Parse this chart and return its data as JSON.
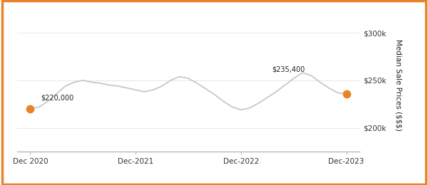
{
  "title": "",
  "ylabel": "Median Sale Prices ($$$)",
  "background_color": "#ffffff",
  "border_color": "#E8832A",
  "line_color": "#c8c8c8",
  "dot_color": "#E8832A",
  "annotation_start": "$220,000",
  "annotation_end": "$235,400",
  "ylim": [
    175000,
    315000
  ],
  "yticks": [
    200000,
    250000,
    300000
  ],
  "ytick_labels": [
    "$200k",
    "$250k",
    "$300k"
  ],
  "x_tick_labels": [
    "Dec 2020",
    "Dec-2021",
    "Dec-2022",
    "Dec-2023"
  ],
  "months": [
    0,
    1,
    2,
    3,
    4,
    5,
    6,
    7,
    8,
    9,
    10,
    11,
    12,
    13,
    14,
    15,
    16,
    17,
    18,
    19,
    20,
    21,
    22,
    23,
    24,
    25,
    26,
    27,
    28,
    29,
    30,
    31,
    32,
    33,
    34,
    35,
    36
  ],
  "values": [
    220000,
    222000,
    228000,
    236000,
    244000,
    248000,
    250000,
    248000,
    247000,
    245000,
    244000,
    242000,
    240000,
    238000,
    240000,
    244000,
    250000,
    254000,
    252000,
    247000,
    241000,
    235000,
    228000,
    222000,
    219000,
    221000,
    226000,
    232000,
    238000,
    245000,
    252000,
    258000,
    255000,
    248000,
    242000,
    237000,
    235400
  ]
}
